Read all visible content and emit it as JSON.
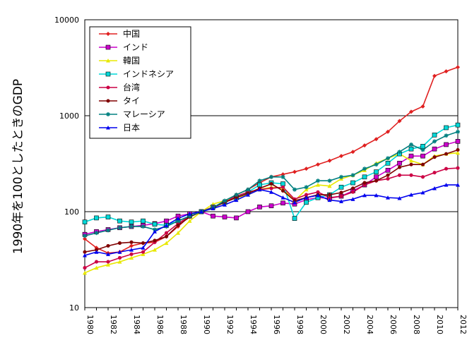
{
  "chart_data": {
    "type": "line",
    "title": "",
    "xlabel": "",
    "ylabel": "1990年を100としたときのGDP",
    "yscale": "log",
    "ylim": [
      10,
      10000
    ],
    "yticks": [
      "10",
      "100",
      "1000",
      "10000"
    ],
    "xlim": [
      1980,
      2012
    ],
    "xticks": [
      "1980",
      "1982",
      "1984",
      "1986",
      "1988",
      "1990",
      "1992",
      "1994",
      "1996",
      "1998",
      "2000",
      "2002",
      "2004",
      "2006",
      "2008",
      "2010",
      "2012"
    ],
    "grid": "horizontal major lines",
    "legend_position": "top-left inside plot",
    "x": [
      1980,
      1981,
      1982,
      1983,
      1984,
      1985,
      1986,
      1987,
      1988,
      1989,
      1990,
      1991,
      1992,
      1993,
      1994,
      1995,
      1996,
      1997,
      1998,
      1999,
      2000,
      2001,
      2002,
      2003,
      2004,
      2005,
      2006,
      2007,
      2008,
      2009,
      2010,
      2011,
      2012
    ],
    "series": [
      {
        "name": "中国",
        "color": "#e02020",
        "marker": "diamond",
        "values": [
          52,
          42,
          37,
          38,
          44,
          47,
          48,
          55,
          70,
          90,
          100,
          110,
          128,
          150,
          170,
          200,
          230,
          245,
          260,
          280,
          310,
          340,
          380,
          420,
          490,
          570,
          680,
          880,
          1100,
          1250,
          2600,
          2900,
          3200
        ]
      },
      {
        "name": "インド",
        "color": "#cc00cc",
        "marker": "square",
        "values": [
          58,
          62,
          65,
          68,
          70,
          72,
          75,
          80,
          90,
          95,
          100,
          90,
          88,
          86,
          100,
          112,
          115,
          123,
          120,
          133,
          140,
          138,
          145,
          165,
          190,
          230,
          270,
          320,
          380,
          380,
          450,
          500,
          540
        ]
      },
      {
        "name": "韓国",
        "color": "#e8e800",
        "marker": "triangle",
        "values": [
          23,
          26,
          28,
          30,
          33,
          36,
          40,
          47,
          60,
          80,
          100,
          120,
          130,
          140,
          150,
          170,
          180,
          175,
          130,
          170,
          190,
          185,
          220,
          240,
          270,
          320,
          360,
          400,
          340,
          310,
          380,
          400,
          410
        ]
      },
      {
        "name": "インドネシア",
        "color": "#00d8d8",
        "marker": "square",
        "values": [
          78,
          86,
          88,
          80,
          78,
          80,
          74,
          72,
          80,
          90,
          100,
          112,
          125,
          140,
          160,
          190,
          200,
          195,
          85,
          125,
          140,
          150,
          180,
          200,
          230,
          260,
          320,
          400,
          450,
          480,
          630,
          750,
          800
        ]
      },
      {
        "name": "台湾",
        "color": "#cc0044",
        "marker": "circle",
        "values": [
          26,
          30,
          30,
          33,
          36,
          38,
          48,
          60,
          75,
          90,
          100,
          112,
          125,
          145,
          160,
          170,
          175,
          180,
          135,
          150,
          160,
          140,
          145,
          160,
          190,
          210,
          220,
          240,
          240,
          230,
          255,
          280,
          285
        ]
      },
      {
        "name": "タイ",
        "color": "#800000",
        "marker": "circle",
        "values": [
          38,
          40,
          44,
          47,
          48,
          47,
          50,
          55,
          72,
          88,
          100,
          110,
          125,
          140,
          155,
          175,
          195,
          165,
          130,
          140,
          150,
          150,
          158,
          175,
          200,
          210,
          240,
          290,
          310,
          310,
          370,
          400,
          440
        ]
      },
      {
        "name": "マレーシア",
        "color": "#008080",
        "marker": "star",
        "values": [
          56,
          60,
          64,
          68,
          70,
          70,
          65,
          70,
          80,
          90,
          100,
          110,
          130,
          150,
          170,
          210,
          230,
          230,
          170,
          180,
          210,
          210,
          230,
          240,
          280,
          310,
          360,
          420,
          500,
          440,
          540,
          620,
          680
        ]
      },
      {
        "name": "日本",
        "color": "#0000ee",
        "marker": "triangle",
        "values": [
          35,
          38,
          36,
          38,
          40,
          42,
          62,
          72,
          85,
          95,
          100,
          108,
          118,
          132,
          150,
          170,
          160,
          140,
          125,
          140,
          148,
          132,
          128,
          135,
          148,
          148,
          140,
          138,
          150,
          158,
          175,
          190,
          190
        ]
      }
    ]
  }
}
